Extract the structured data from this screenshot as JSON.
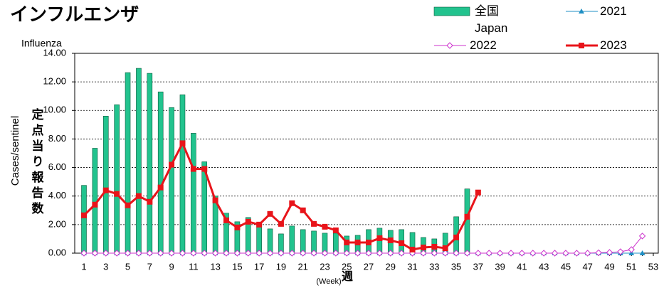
{
  "chart_data": {
    "type": "bar",
    "title": "インフルエンザ",
    "subtitle": "Influenza",
    "y_label": "Cases/sentinel",
    "y_label_ja": "定点当り報告数",
    "x_label_ja": "週",
    "x_label": "(Week)",
    "categories": [
      1,
      null,
      3,
      null,
      5,
      null,
      7,
      null,
      9,
      null,
      11,
      null,
      13,
      null,
      15,
      null,
      17,
      null,
      19,
      null,
      21,
      null,
      23,
      null,
      25,
      null,
      27,
      null,
      29,
      null,
      31,
      null,
      33,
      null,
      35,
      null,
      37,
      null,
      39,
      null,
      41,
      null,
      43,
      null,
      45,
      null,
      47,
      null,
      49,
      null,
      51,
      null,
      53
    ],
    "ylim": [
      0,
      14
    ],
    "yticks": [
      {
        "value": 0,
        "label": "0.00"
      },
      {
        "value": 2,
        "label": "2.00"
      },
      {
        "value": 4,
        "label": "4.00"
      },
      {
        "value": 6,
        "label": "6.00"
      },
      {
        "value": 8,
        "label": "8.00"
      },
      {
        "value": 10,
        "label": "10.00"
      },
      {
        "value": 12,
        "label": "12.00"
      },
      {
        "value": 14,
        "label": "14.00"
      }
    ],
    "grid": true,
    "series": [
      {
        "name": "全国\nJapan",
        "type": "bar",
        "color": "#22c38e",
        "values": [
          4.75,
          7.35,
          9.6,
          10.4,
          12.65,
          12.95,
          12.6,
          11.3,
          10.2,
          11.1,
          8.4,
          6.4,
          4.0,
          2.8,
          2.2,
          2.5,
          2.0,
          1.7,
          1.35,
          1.9,
          1.65,
          1.55,
          1.4,
          1.4,
          1.2,
          1.25,
          1.65,
          1.75,
          1.6,
          1.65,
          1.45,
          1.1,
          1.0,
          1.4,
          2.55,
          4.5,
          null,
          null,
          null,
          null,
          null,
          null,
          null,
          null,
          null,
          null,
          null,
          null,
          null,
          null,
          null,
          null,
          null
        ]
      },
      {
        "name": "2021",
        "type": "line",
        "marker": "triangle",
        "color": "#1f8fc4",
        "values": [
          0,
          0,
          0,
          0,
          0,
          0,
          0,
          0,
          0,
          0,
          0,
          0,
          0,
          0,
          0,
          0,
          0,
          0,
          0,
          0,
          0,
          0,
          0,
          0,
          0,
          0,
          0,
          0,
          0,
          0,
          0,
          0,
          0,
          0,
          0,
          0,
          0,
          0,
          0,
          0,
          0,
          0,
          0,
          0,
          0,
          0,
          0,
          0,
          0,
          0,
          0,
          0,
          null
        ]
      },
      {
        "name": "2022",
        "type": "line",
        "marker": "diamond",
        "color": "#cc33cc",
        "values": [
          0,
          0,
          0,
          0,
          0,
          0,
          0,
          0,
          0,
          0,
          0,
          0,
          0,
          0,
          0,
          0,
          0,
          0,
          0,
          0,
          0,
          0,
          0,
          0,
          0,
          0,
          0,
          0,
          0,
          0,
          0,
          0,
          0,
          0,
          0,
          0,
          0,
          0,
          0,
          0,
          0,
          0,
          0,
          0,
          0,
          0,
          0,
          0.03,
          0.05,
          0.1,
          0.25,
          1.2,
          null
        ]
      },
      {
        "name": "2023",
        "type": "line",
        "marker": "square",
        "color": "#e8141a",
        "values": [
          2.65,
          3.4,
          4.4,
          4.15,
          3.35,
          4.0,
          3.6,
          4.6,
          6.2,
          7.7,
          5.9,
          5.9,
          3.7,
          2.3,
          1.8,
          2.2,
          2.0,
          2.75,
          2.05,
          3.5,
          3.0,
          2.05,
          1.85,
          1.6,
          0.75,
          0.75,
          0.75,
          1.05,
          0.9,
          0.7,
          0.25,
          0.4,
          0.45,
          0.35,
          1.1,
          2.55,
          4.25,
          null,
          null,
          null,
          null,
          null,
          null,
          null,
          null,
          null,
          null,
          null,
          null,
          null,
          null,
          null,
          null
        ]
      }
    ]
  }
}
